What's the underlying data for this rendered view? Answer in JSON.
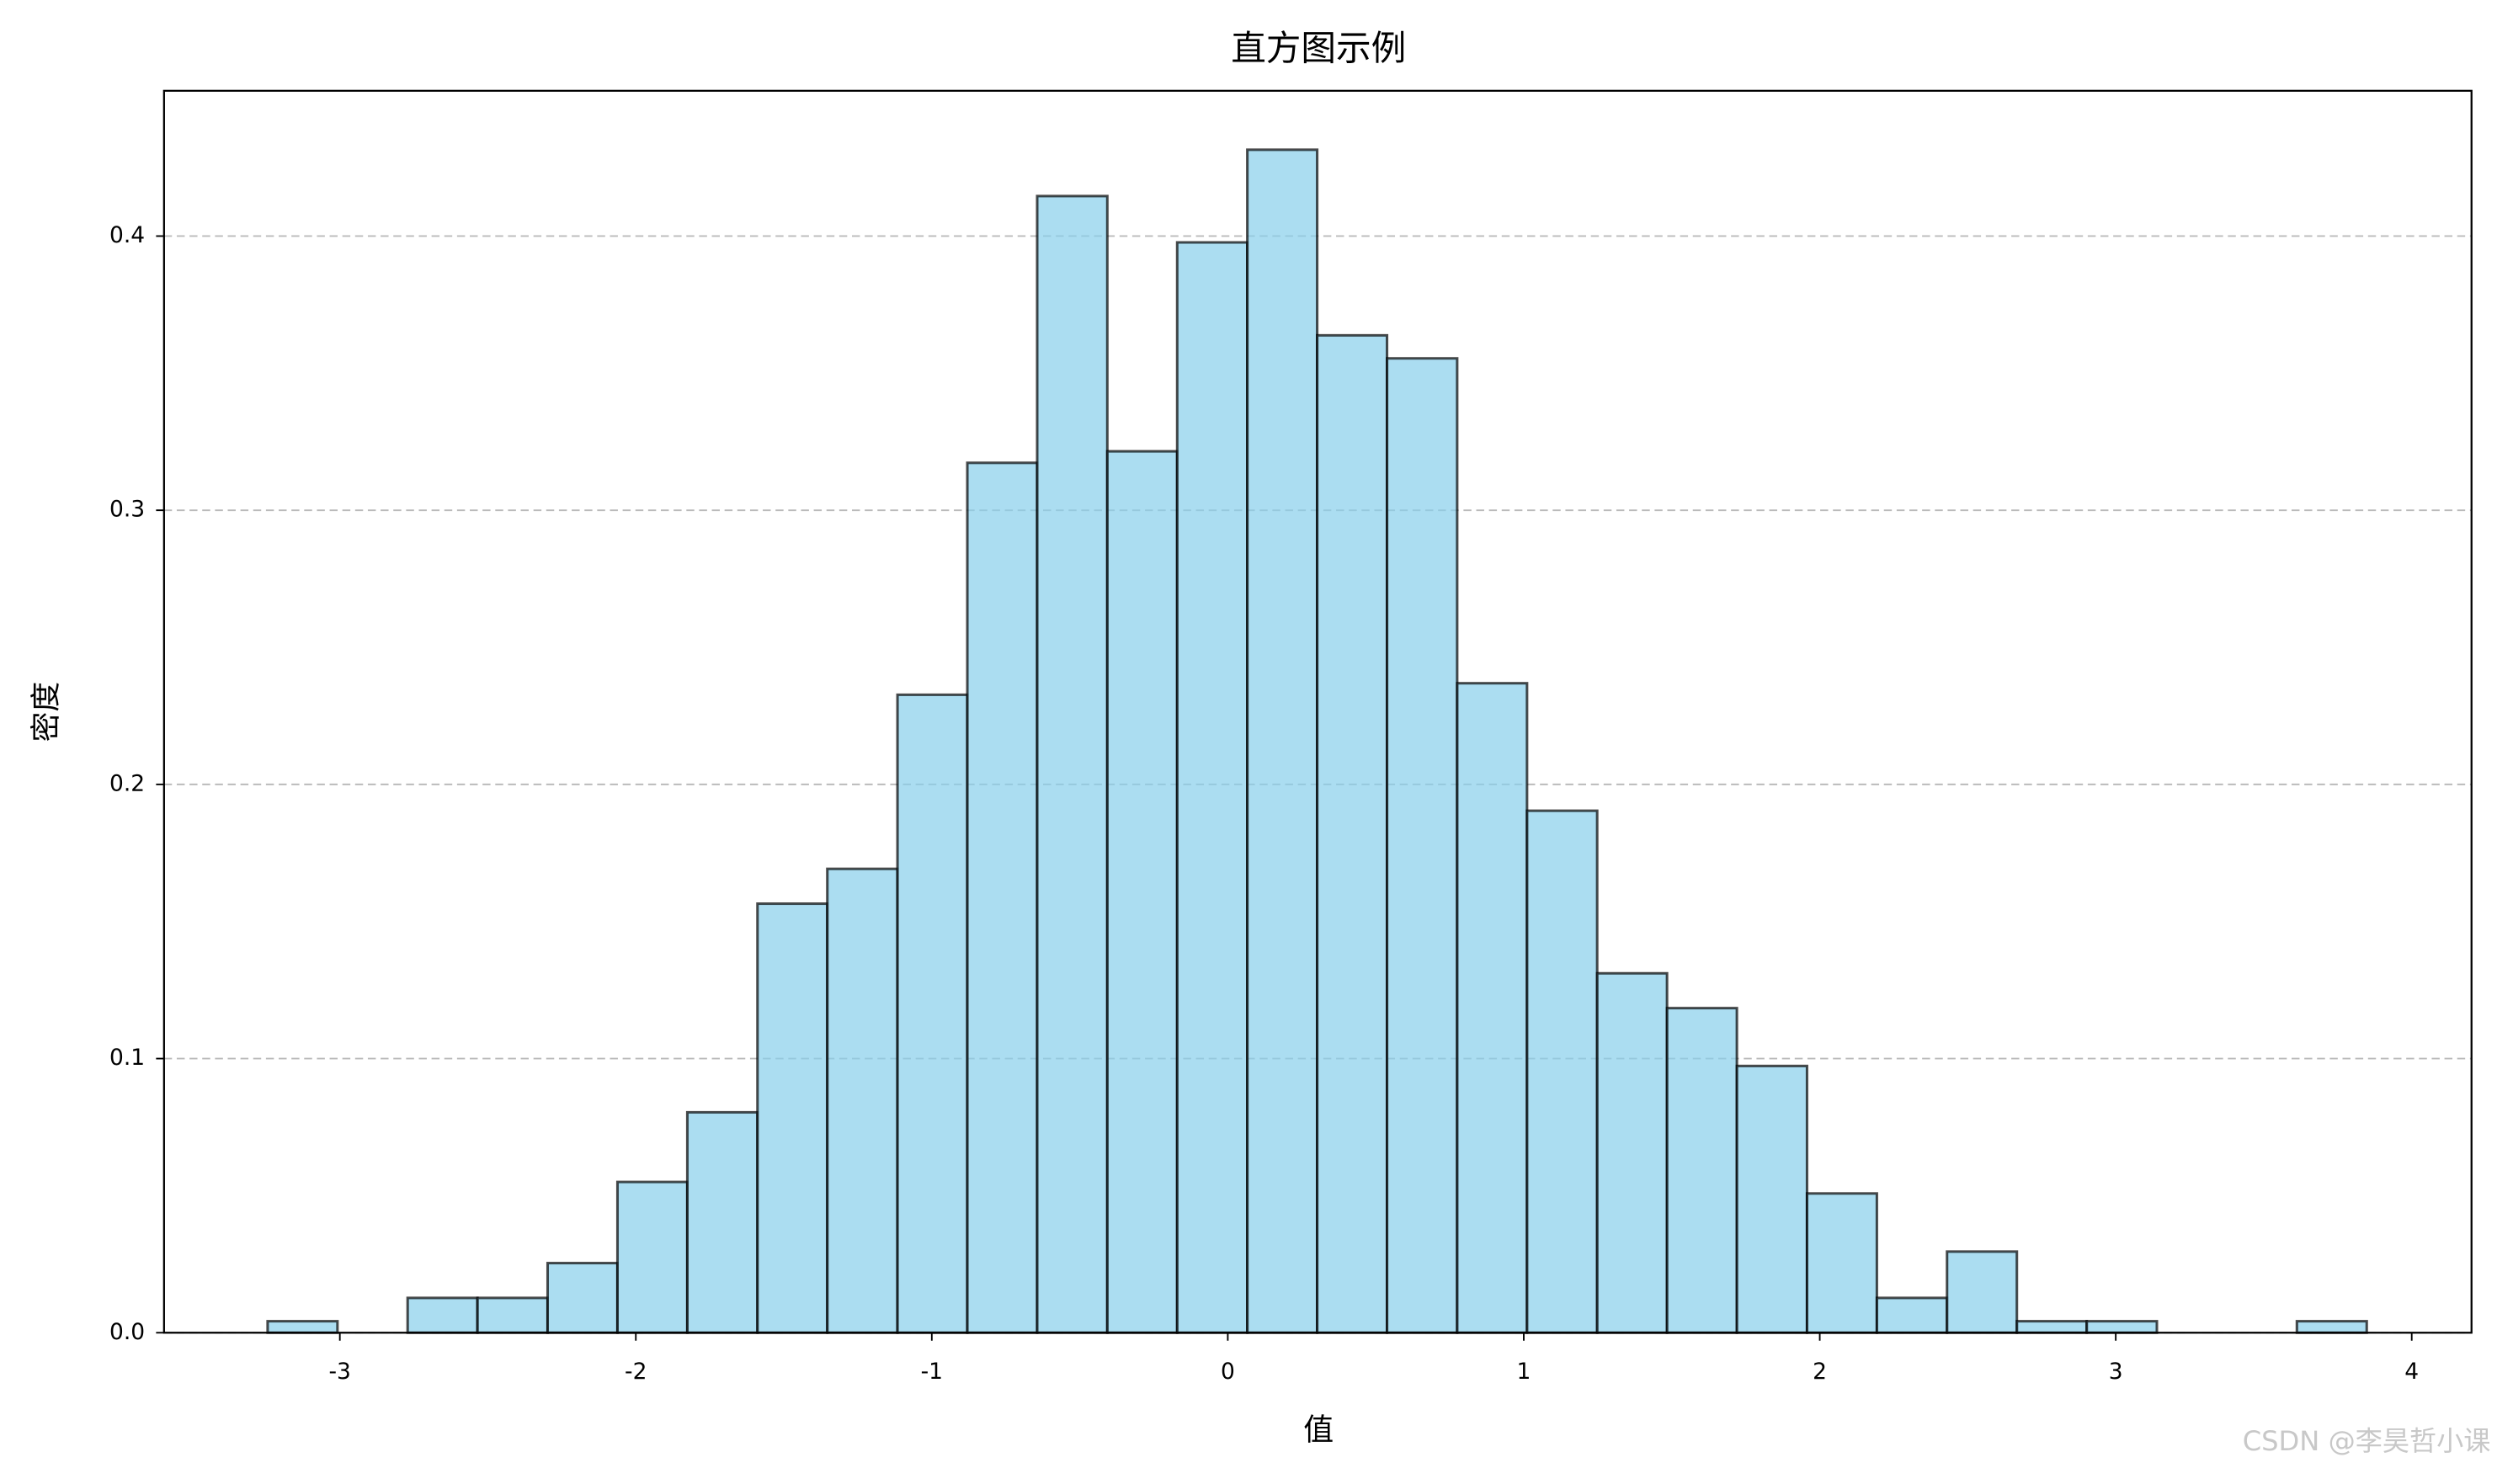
{
  "chart_data": {
    "type": "histogram",
    "title": "直方图示例",
    "x_label": "值",
    "y_label": "密度",
    "bins": [
      -3.244,
      -3.008,
      -2.771,
      -2.535,
      -2.298,
      -2.062,
      -1.826,
      -1.589,
      -1.353,
      -1.116,
      -0.88,
      -0.644,
      -0.407,
      -0.171,
      0.066,
      0.302,
      0.538,
      0.775,
      1.011,
      1.248,
      1.484,
      1.72,
      1.957,
      2.193,
      2.43,
      2.666,
      2.902,
      3.139,
      3.375,
      3.612,
      3.848
    ],
    "values": [
      0.0042,
      0,
      0.0127,
      0.0127,
      0.0254,
      0.055,
      0.0804,
      0.1565,
      0.1692,
      0.2327,
      0.3173,
      0.4146,
      0.3215,
      0.3977,
      0.4315,
      0.3638,
      0.3554,
      0.2369,
      0.1904,
      0.1311,
      0.1184,
      0.0973,
      0.0508,
      0.0127,
      0.0296,
      0.0042,
      0.0042,
      0,
      0,
      0.0042
    ],
    "color": "#87ceeb",
    "edgecolor": "#000000",
    "alpha": 0.7,
    "xlim": [
      -3.594,
      4.202
    ],
    "xticks": [
      -3,
      -2,
      -1,
      0,
      1,
      2,
      3,
      4
    ],
    "ylim": [
      0,
      0.453
    ],
    "yticks": [
      {
        "value": 0,
        "label": "0.0"
      },
      0.1,
      0.2,
      0.3,
      0.4
    ],
    "grid": "y",
    "watermark": "CSDN @李昊哲小课"
  }
}
